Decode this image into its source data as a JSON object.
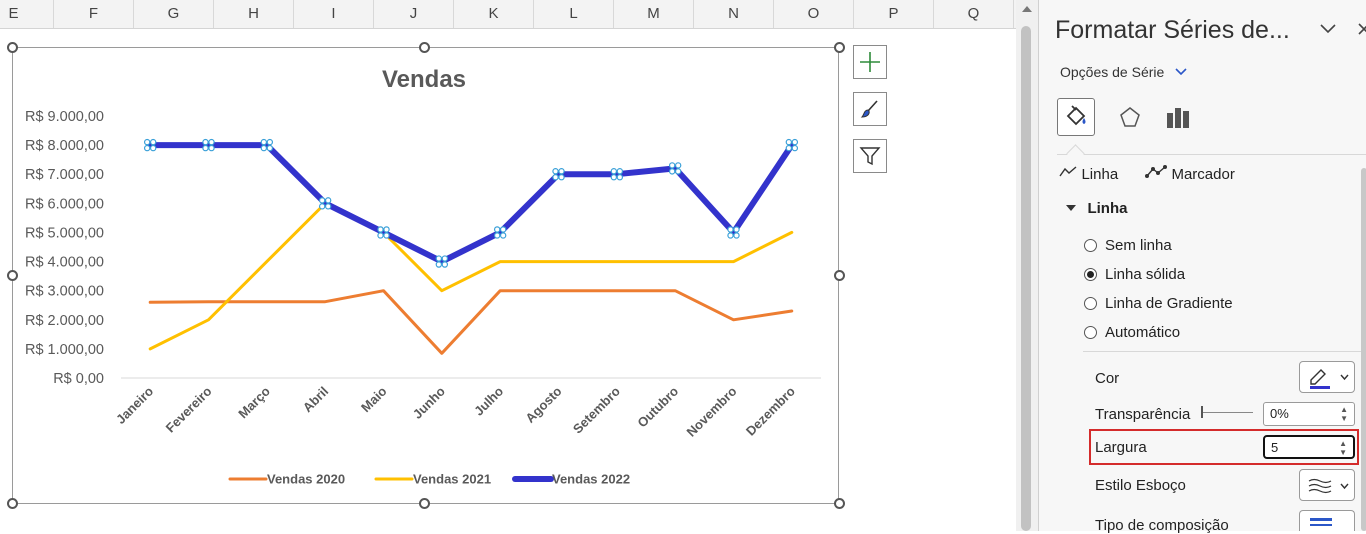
{
  "sheet": {
    "columns": [
      "E",
      "F",
      "G",
      "H",
      "I",
      "J",
      "K",
      "L",
      "M",
      "N",
      "O",
      "P",
      "Q"
    ]
  },
  "chart_data": {
    "type": "line",
    "title": "Vendas",
    "categories": [
      "Janeiro",
      "Fevereiro",
      "Março",
      "Abril",
      "Maio",
      "Junho",
      "Julho",
      "Agosto",
      "Setembro",
      "Outubro",
      "Novembro",
      "Dezembro"
    ],
    "yticks": [
      "R$ 0,00",
      "R$ 1.000,00",
      "R$ 2.000,00",
      "R$ 3.000,00",
      "R$ 4.000,00",
      "R$ 5.000,00",
      "R$ 6.000,00",
      "R$ 7.000,00",
      "R$ 8.000,00",
      "R$ 9.000,00"
    ],
    "ylim": [
      0,
      9000
    ],
    "grid": false,
    "legend_position": "bottom",
    "series": [
      {
        "name": "Vendas 2020",
        "color": "#ED7D31",
        "values": [
          2600,
          2620,
          2620,
          2620,
          3000,
          850,
          3000,
          3000,
          3000,
          3000,
          2000,
          2300
        ]
      },
      {
        "name": "Vendas 2021",
        "color": "#FFC000",
        "values": [
          1000,
          2000,
          4000,
          6000,
          5000,
          3000,
          4000,
          4000,
          4000,
          4000,
          4000,
          5000
        ]
      },
      {
        "name": "Vendas 2022",
        "color": "#3333CC",
        "selected": true,
        "values": [
          8000,
          8000,
          8000,
          6000,
          5000,
          4000,
          5000,
          7000,
          7000,
          7200,
          5000,
          8000
        ]
      }
    ]
  },
  "chart_buttons": [
    {
      "icon": "plus-icon"
    },
    {
      "icon": "brush-icon"
    },
    {
      "icon": "filter-icon"
    }
  ],
  "pane": {
    "title": "Formatar Séries de...",
    "options_label": "Opções de Série",
    "tab_line": "Linha",
    "tab_marker": "Marcador",
    "section": "Linha",
    "radios": [
      "Sem linha",
      "Linha sólida",
      "Linha de Gradiente",
      "Automático"
    ],
    "selected_radio": "Linha sólida",
    "cor_label": "Cor",
    "transparencia_label": "Transparência",
    "transparencia_value": "0%",
    "largura_label": "Largura",
    "largura_value": "5",
    "estilo_label": "Estilo Esboço",
    "composicao_label": "Tipo de composição",
    "accent": "#2B57C8",
    "highlight": "#D42B2B"
  }
}
